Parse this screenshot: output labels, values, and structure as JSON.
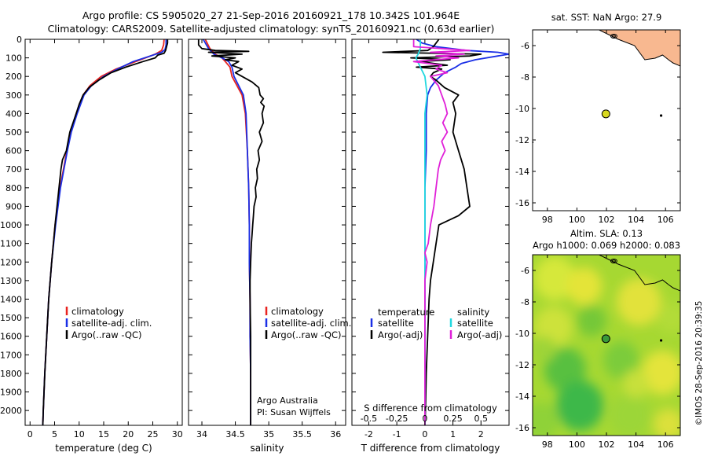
{
  "header": {
    "line1": "Argo profile: CS 5905020_27 21-Sep-2016 20160921_178 10.342S 101.964E",
    "line2": "Climatology: CARS2009. Satellite-adjusted climatology: synTS_20160921.nc (0.63d earlier)"
  },
  "footer_note": "©IMOS 28-Sep-2016 20:39:35",
  "colors": {
    "climatology": "#e8231f",
    "satellite": "#1a2fe6",
    "argo": "#000000",
    "sat_s": "#22d8e0",
    "argo_s": "#e020d8",
    "land": "#f8b890",
    "argo_marker": "#d8d820",
    "sla_marker": "#3a9a3a"
  },
  "chart_data": [
    {
      "id": "temperature",
      "type": "line",
      "xlabel": "temperature (deg C)",
      "ylabel": "",
      "xlim": [
        -1,
        31
      ],
      "ylim": [
        2080,
        0
      ],
      "xticks": [
        0,
        5,
        10,
        15,
        20,
        25,
        30
      ],
      "xtick_labels": [
        "0",
        "5",
        "10",
        "15",
        "20",
        "25",
        "30"
      ],
      "yticks": [
        0,
        100,
        200,
        300,
        400,
        500,
        600,
        700,
        800,
        900,
        1000,
        1100,
        1200,
        1300,
        1400,
        1500,
        1600,
        1700,
        1800,
        1900,
        2000
      ],
      "ytick_labels": [
        "0",
        "100",
        "200",
        "300",
        "400",
        "500",
        "600",
        "700",
        "800",
        "900",
        "1000",
        "1100",
        "1200",
        "1300",
        "1400",
        "1500",
        "1600",
        "1700",
        "1800",
        "1900",
        "2000"
      ],
      "legend": [
        "climatology",
        "satellite-adj. clim.",
        "Argo(..raw -QC)"
      ],
      "series": [
        {
          "name": "climatology",
          "color": "#e8231f",
          "depth": [
            0,
            30,
            60,
            80,
            100,
            130,
            160,
            200,
            250,
            300,
            400,
            500,
            600,
            700,
            800,
            900,
            1000,
            1200,
            1400,
            1600,
            1800,
            2000,
            2080
          ],
          "values": [
            27.3,
            27.2,
            26.8,
            25.5,
            23.5,
            20.5,
            17.5,
            14.5,
            12.2,
            10.8,
            9.4,
            8.3,
            7.5,
            6.8,
            6.1,
            5.6,
            5.1,
            4.4,
            3.8,
            3.4,
            3.0,
            2.7,
            2.6
          ]
        },
        {
          "name": "satellite-adj. clim.",
          "color": "#1a2fe6",
          "depth": [
            0,
            30,
            55,
            70,
            90,
            120,
            160,
            200,
            250,
            300,
            400,
            500,
            600,
            700,
            800,
            900,
            1000,
            1200,
            1400,
            1600,
            1800,
            2000,
            2080
          ],
          "values": [
            27.7,
            27.7,
            27.5,
            26.8,
            24.5,
            21.0,
            17.8,
            15.0,
            12.5,
            11.0,
            9.6,
            8.4,
            7.6,
            6.9,
            6.2,
            5.7,
            5.2,
            4.4,
            3.8,
            3.4,
            3.0,
            2.7,
            2.6
          ]
        },
        {
          "name": "Argo(..raw -QC)",
          "color": "#000000",
          "depth": [
            0,
            20,
            40,
            60,
            75,
            85,
            100,
            120,
            150,
            180,
            220,
            260,
            300,
            350,
            400,
            500,
            600,
            650,
            700,
            800,
            900,
            1000,
            1200,
            1400,
            1600,
            1800,
            2000,
            2080
          ],
          "values": [
            28.0,
            28.0,
            27.8,
            27.6,
            27.3,
            26.0,
            25.5,
            23.0,
            19.5,
            16.5,
            14.0,
            12.0,
            10.8,
            10.0,
            9.4,
            8.1,
            7.4,
            6.6,
            6.3,
            5.9,
            5.5,
            5.1,
            4.4,
            3.8,
            3.4,
            3.0,
            2.7,
            2.6
          ]
        }
      ]
    },
    {
      "id": "salinity",
      "type": "line",
      "xlabel": "salinity",
      "xlim": [
        33.8,
        36.15
      ],
      "ylim": [
        2080,
        0
      ],
      "xticks": [
        34,
        34.5,
        35,
        35.5,
        36
      ],
      "xtick_labels": [
        "34",
        "34.5",
        "35",
        "35.5",
        "36"
      ],
      "legend": [
        "climatology",
        "satellite-adj. clim.",
        "Argo(..raw -QC)"
      ],
      "annotation": [
        "Argo Australia",
        "PI: Susan Wijffels"
      ],
      "series": [
        {
          "name": "climatology",
          "color": "#e8231f",
          "depth": [
            0,
            50,
            80,
            100,
            120,
            150,
            200,
            300,
            400,
            600,
            800,
            1000,
            1200,
            1400,
            1600,
            1800,
            2000,
            2080
          ],
          "values": [
            34.05,
            34.12,
            34.2,
            34.3,
            34.35,
            34.42,
            34.45,
            34.6,
            34.65,
            34.68,
            34.7,
            34.71,
            34.71,
            34.72,
            34.72,
            34.73,
            34.73,
            34.73
          ]
        },
        {
          "name": "satellite-adj. clim.",
          "color": "#1a2fe6",
          "depth": [
            0,
            50,
            80,
            100,
            120,
            150,
            200,
            300,
            400,
            600,
            800,
            1000,
            1200,
            1400,
            1600,
            1800,
            2000,
            2080
          ],
          "values": [
            34.02,
            34.1,
            34.18,
            34.3,
            34.4,
            34.45,
            34.48,
            34.62,
            34.66,
            34.68,
            34.7,
            34.71,
            34.71,
            34.72,
            34.72,
            34.73,
            34.73,
            34.73
          ]
        },
        {
          "name": "Argo(..raw -QC)",
          "color": "#000000",
          "depth": [
            0,
            30,
            50,
            60,
            65,
            70,
            80,
            90,
            100,
            110,
            120,
            140,
            160,
            180,
            200,
            230,
            260,
            300,
            320,
            340,
            360,
            400,
            450,
            500,
            550,
            600,
            650,
            700,
            750,
            800,
            850,
            900,
            950,
            1000,
            1050,
            1100,
            1200,
            1300,
            1400,
            1600,
            1800,
            2000,
            2080
          ],
          "values": [
            33.95,
            33.95,
            34.0,
            34.2,
            34.7,
            34.1,
            34.6,
            34.15,
            34.5,
            34.35,
            34.55,
            34.45,
            34.6,
            34.5,
            34.6,
            34.75,
            34.85,
            34.87,
            34.92,
            34.88,
            34.93,
            34.9,
            34.92,
            34.86,
            34.9,
            34.84,
            34.86,
            34.82,
            34.83,
            34.8,
            34.81,
            34.78,
            34.77,
            34.76,
            34.75,
            34.74,
            34.73,
            34.72,
            34.72,
            34.73,
            34.73,
            34.73,
            34.73
          ]
        }
      ]
    },
    {
      "id": "difference",
      "type": "line",
      "xlabel": "T difference from climatology",
      "top_xlabel": "S difference from climatology",
      "xlim": [
        -2.6,
        3.0
      ],
      "ylim": [
        2080,
        0
      ],
      "xticks": [
        -2,
        -1,
        0,
        1,
        2
      ],
      "xtick_labels": [
        "-2",
        "-1",
        "0",
        "1",
        "2"
      ],
      "top_ticks": [
        -0.5,
        -0.25,
        0,
        0.25,
        0.5
      ],
      "top_tick_labels": [
        "-0.5",
        "-0.25",
        "0",
        "0.25",
        "0.5"
      ],
      "legend_left_title": "temperature",
      "legend_right_title": "salinity",
      "legend": [
        "satellite",
        "Argo(-adj)",
        "satellite",
        "Argo(-adj)"
      ],
      "series": [
        {
          "name": "T satellite",
          "color": "#1a2fe6",
          "depth": [
            0,
            20,
            40,
            60,
            70,
            80,
            90,
            110,
            130,
            150,
            180,
            220,
            260,
            300,
            400,
            600,
            800,
            1000,
            1400,
            2080
          ],
          "values": [
            -0.3,
            -0.1,
            0.4,
            1.5,
            2.6,
            3.0,
            2.6,
            1.8,
            1.3,
            1.1,
            0.7,
            0.4,
            0.2,
            0.1,
            0.05,
            0.05,
            0.0,
            0.0,
            0.0,
            0.0
          ]
        },
        {
          "name": "T Argo(-adj)",
          "color": "#000000",
          "depth": [
            0,
            40,
            60,
            70,
            80,
            90,
            100,
            110,
            120,
            140,
            150,
            160,
            180,
            200,
            220,
            260,
            300,
            340,
            400,
            500,
            600,
            700,
            800,
            900,
            950,
            1000,
            1100,
            1200,
            1300,
            1400,
            1600,
            1800,
            2000,
            2080
          ],
          "values": [
            0.5,
            0.3,
            0.1,
            -1.5,
            2.0,
            1.6,
            -0.5,
            0.9,
            -0.2,
            0.8,
            -0.3,
            0.6,
            0.3,
            0.2,
            0.4,
            0.7,
            1.2,
            1.0,
            1.1,
            1.0,
            1.2,
            1.4,
            1.5,
            1.6,
            1.2,
            0.5,
            0.4,
            0.3,
            0.2,
            0.15,
            0.1,
            0.05,
            0.02,
            0.0
          ]
        },
        {
          "name": "S satellite",
          "color": "#22d8e0",
          "depth": [
            0,
            50,
            80,
            100,
            150,
            200,
            300,
            400,
            600,
            800,
            1000,
            1200,
            1400,
            1600,
            1800,
            2000,
            2080
          ],
          "values": [
            -0.04,
            -0.04,
            -0.06,
            -0.08,
            -0.04,
            0.0,
            0.02,
            0.0,
            0.0,
            0.0,
            0.0,
            0.0,
            0.0,
            0.0,
            0.0,
            0.0,
            0.0
          ]
        },
        {
          "name": "S Argo(-adj)",
          "color": "#e020d8",
          "depth": [
            0,
            40,
            60,
            70,
            80,
            90,
            100,
            120,
            140,
            160,
            180,
            200,
            250,
            300,
            350,
            400,
            450,
            500,
            550,
            600,
            650,
            700,
            800,
            900,
            1000,
            1100,
            1150,
            1200,
            1300,
            1400,
            1600,
            1800,
            2000,
            2080
          ],
          "values": [
            -0.1,
            -0.1,
            0.4,
            0.05,
            0.35,
            0.1,
            0.3,
            -0.1,
            0.15,
            0.1,
            0.2,
            0.05,
            0.12,
            0.15,
            0.18,
            0.2,
            0.16,
            0.2,
            0.15,
            0.18,
            0.14,
            0.12,
            0.1,
            0.08,
            0.05,
            0.03,
            0.0,
            0.02,
            0.0,
            0.0,
            0.0,
            0.0,
            0.0,
            0.0
          ]
        }
      ]
    },
    {
      "id": "sst_map",
      "type": "scatter",
      "title": "sat. SST: NaN Argo: 27.9",
      "xlim": [
        97,
        107
      ],
      "ylim": [
        -16.5,
        -5
      ],
      "xticks": [
        98,
        100,
        102,
        104,
        106
      ],
      "xtick_labels": [
        "98",
        "100",
        "102",
        "104",
        "106"
      ],
      "yticks": [
        -6,
        -8,
        -10,
        -12,
        -14,
        -16
      ],
      "ytick_labels": [
        "-6",
        "-8",
        "-10",
        "-12",
        "-14",
        "-16"
      ],
      "argo_position": {
        "lon": 101.964,
        "lat": -10.342
      }
    },
    {
      "id": "sla_map",
      "type": "heatmap",
      "title_line1": "Altim. SLA: 0.13",
      "title_line2": "Argo h1000: 0.069 h2000: 0.083",
      "xlim": [
        97,
        107
      ],
      "ylim": [
        -16.5,
        -5
      ],
      "xticks": [
        98,
        100,
        102,
        104,
        106
      ],
      "xtick_labels": [
        "98",
        "100",
        "102",
        "104",
        "106"
      ],
      "yticks": [
        -6,
        -8,
        -10,
        -12,
        -14,
        -16
      ],
      "ytick_labels": [
        "-6",
        "-8",
        "-10",
        "-12",
        "-14",
        "-16"
      ],
      "argo_position": {
        "lon": 101.964,
        "lat": -10.342
      }
    }
  ]
}
